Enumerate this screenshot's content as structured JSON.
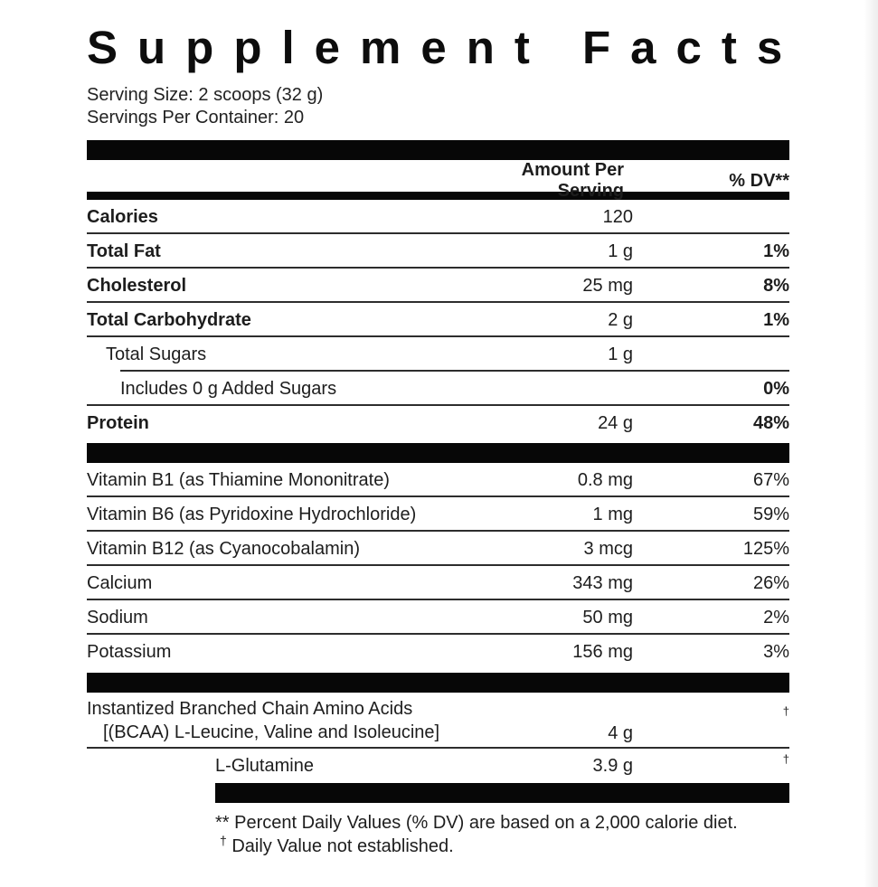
{
  "title": "Supplement Facts",
  "serving": {
    "size": "Serving Size: 2 scoops (32 g)",
    "per_container": "Servings Per Container: 20"
  },
  "table": {
    "header": {
      "amount": "Amount Per Serving",
      "dv": "% DV**"
    },
    "rows": [
      {
        "name": "Calories",
        "amount": "120",
        "dv": ""
      },
      {
        "name": "Total Fat",
        "amount": "1 g",
        "dv": "1%"
      },
      {
        "name": "Cholesterol",
        "amount": "25 mg",
        "dv": "8%"
      },
      {
        "name": "Total Carbohydrate",
        "amount": "2 g",
        "dv": "1%"
      },
      {
        "name": "Total Sugars",
        "amount": "1 g",
        "dv": ""
      },
      {
        "name": "Includes 0 g Added Sugars",
        "amount": "",
        "dv": "0%"
      },
      {
        "name": "Protein",
        "amount": "24 g",
        "dv": "48%"
      },
      {
        "name": "Vitamin B1 (as Thiamine Mononitrate)",
        "amount": "0.8 mg",
        "dv": "67%"
      },
      {
        "name": "Vitamin B6 (as Pyridoxine Hydrochloride)",
        "amount": "1 mg",
        "dv": "59%"
      },
      {
        "name": "Vitamin B12 (as Cyanocobalamin)",
        "amount": "3 mcg",
        "dv": "125%"
      },
      {
        "name": "Calcium",
        "amount": "343 mg",
        "dv": "26%"
      },
      {
        "name": "Sodium",
        "amount": "50 mg",
        "dv": "2%"
      },
      {
        "name": "Potassium",
        "amount": "156 mg",
        "dv": "3%"
      },
      {
        "name_line1": "Instantized Branched Chain Amino Acids",
        "name_line2": "[(BCAA) L-Leucine, Valine and Isoleucine]",
        "amount": "4 g",
        "dv": "†"
      },
      {
        "name": "L-Glutamine",
        "amount": "3.9 g",
        "dv": "†"
      }
    ]
  },
  "footnotes": {
    "dv_note": "** Percent Daily Values (% DV) are based on a 2,000 calorie diet.",
    "dagger_symbol": "†",
    "dagger_note": " Daily Value not established."
  },
  "colors": {
    "bar": "#070707",
    "divider": "#2d2d2d",
    "text": "#1d1d1d",
    "background": "#ffffff"
  }
}
